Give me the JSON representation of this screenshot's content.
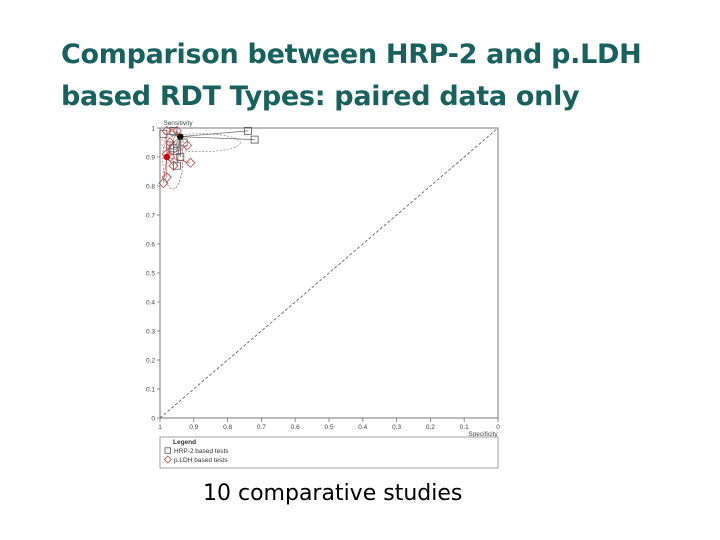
{
  "slide": {
    "title_line1": "Comparison between HRP-2 and p.LDH",
    "title_line2": "based RDT Types: paired data only",
    "caption": "10 comparative studies"
  },
  "chart_data": {
    "type": "scatter",
    "xlabel": "Specificity",
    "ylabel": "Sensitivity",
    "x_reversed": true,
    "xlim": [
      0,
      1
    ],
    "ylim": [
      0,
      1
    ],
    "x_ticks": [
      1,
      0.9,
      0.8,
      0.7,
      0.6,
      0.5,
      0.4,
      0.3,
      0.2,
      0.1,
      0
    ],
    "x_tick_labels": [
      "1",
      "0.9",
      "0.8",
      "0.7",
      "0.6",
      "0.5",
      "0.4",
      "0.3",
      "0.2",
      "0.1",
      "0"
    ],
    "y_ticks": [
      0,
      0.1,
      0.2,
      0.3,
      0.4,
      0.5,
      0.6,
      0.7,
      0.8,
      0.9,
      1
    ],
    "y_tick_labels": [
      "0",
      "0.1",
      "0.2",
      "0.3",
      "0.4",
      "0.5",
      "0.6",
      "0.7",
      "0.8",
      "0.9",
      "1"
    ],
    "grid": false,
    "diagonal": "dashed",
    "legend": {
      "title": "Legend",
      "position": "bottom",
      "entries": [
        "HRP-2 based tests",
        "p.LDH based tests"
      ]
    },
    "series": [
      {
        "name": "HRP-2 based tests",
        "marker": "square",
        "color": "#555555",
        "points": [
          {
            "x": 0.74,
            "y": 0.99
          },
          {
            "x": 0.72,
            "y": 0.96
          },
          {
            "x": 0.96,
            "y": 0.99
          },
          {
            "x": 0.96,
            "y": 0.93
          },
          {
            "x": 0.93,
            "y": 0.95
          },
          {
            "x": 0.94,
            "y": 0.9
          },
          {
            "x": 0.95,
            "y": 0.87
          },
          {
            "x": 0.97,
            "y": 0.94
          },
          {
            "x": 0.99,
            "y": 0.98
          },
          {
            "x": 0.95,
            "y": 0.92
          }
        ],
        "summary": {
          "x": 0.94,
          "y": 0.97
        },
        "summary_color": "#000000",
        "confidence_region_color": "#888888"
      },
      {
        "name": "p.LDH based tests",
        "marker": "diamond",
        "color": "#b24a4a",
        "points": [
          {
            "x": 0.98,
            "y": 0.99
          },
          {
            "x": 0.95,
            "y": 0.99
          },
          {
            "x": 0.92,
            "y": 0.94
          },
          {
            "x": 0.91,
            "y": 0.88
          },
          {
            "x": 0.98,
            "y": 0.91
          },
          {
            "x": 0.99,
            "y": 0.81
          },
          {
            "x": 0.98,
            "y": 0.83
          },
          {
            "x": 0.97,
            "y": 0.95
          },
          {
            "x": 0.97,
            "y": 0.9
          },
          {
            "x": 0.96,
            "y": 0.87
          }
        ],
        "summary": {
          "x": 0.98,
          "y": 0.9
        },
        "summary_color": "#cc0000",
        "confidence_region_color": "#b24a4a"
      }
    ]
  }
}
